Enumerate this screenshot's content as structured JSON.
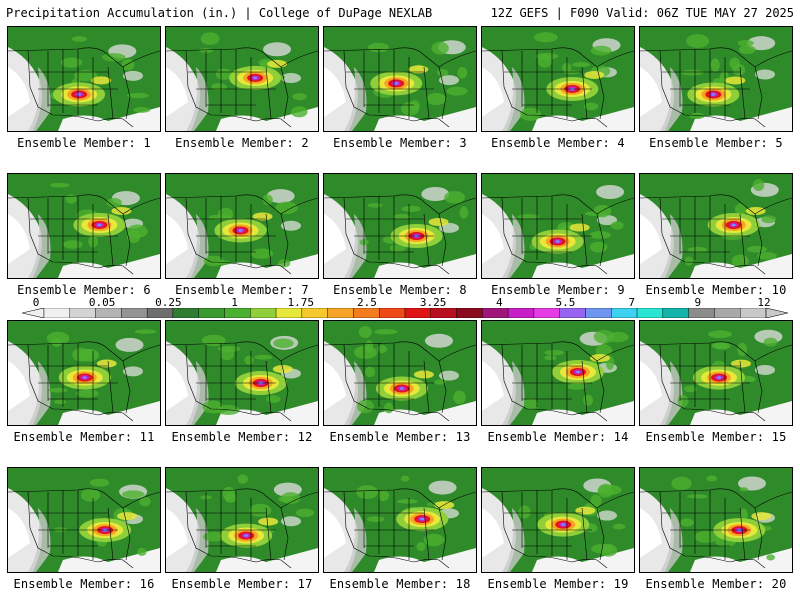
{
  "header": {
    "left_title": "Precipitation Accumulation (in.) | College of DuPage NEXLAB",
    "right_title": "12Z GEFS | F090 Valid: 06Z TUE MAY 27 2025"
  },
  "colorbar": {
    "tick_labels": [
      "0",
      "0.05",
      "0.25",
      "1",
      "1.75",
      "2.5",
      "3.25",
      "4",
      "5.5",
      "7",
      "9",
      "12"
    ],
    "colors": [
      "#f0f0f0",
      "#d4d4d4",
      "#b4b4b4",
      "#949494",
      "#6e6e6e",
      "#2e7d32",
      "#3a9a2e",
      "#4cb030",
      "#8fd03a",
      "#e8e83a",
      "#f5c82e",
      "#f7a326",
      "#f57c1e",
      "#f04a18",
      "#e01414",
      "#b8101e",
      "#8c0a1e",
      "#a0147a",
      "#c81ec8",
      "#e63ce6",
      "#9664f0",
      "#6e96f0",
      "#3cd2f0",
      "#28e6d2",
      "#14b4aa",
      "#8c8c8c",
      "#a8a8a8",
      "#c8c8c8"
    ]
  },
  "members": [
    {
      "label": "Ensemble Member: 1"
    },
    {
      "label": "Ensemble Member: 2"
    },
    {
      "label": "Ensemble Member: 3"
    },
    {
      "label": "Ensemble Member: 4"
    },
    {
      "label": "Ensemble Member: 5"
    },
    {
      "label": "Ensemble Member: 6"
    },
    {
      "label": "Ensemble Member: 7"
    },
    {
      "label": "Ensemble Member: 8"
    },
    {
      "label": "Ensemble Member: 9"
    },
    {
      "label": "Ensemble Member: 10"
    },
    {
      "label": "Ensemble Member: 11"
    },
    {
      "label": "Ensemble Member: 12"
    },
    {
      "label": "Ensemble Member: 13"
    },
    {
      "label": "Ensemble Member: 14"
    },
    {
      "label": "Ensemble Member: 15"
    },
    {
      "label": "Ensemble Member: 16"
    },
    {
      "label": "Ensemble Member: 17"
    },
    {
      "label": "Ensemble Member: 18"
    },
    {
      "label": "Ensemble Member: 19"
    },
    {
      "label": "Ensemble Member: 20"
    }
  ]
}
